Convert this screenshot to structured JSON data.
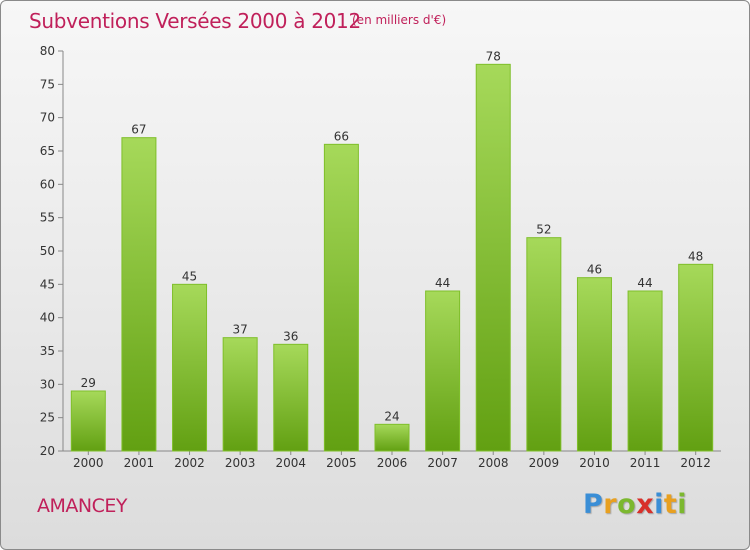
{
  "header": {
    "title": "Subventions Versées 2000 à 2012",
    "subtitle": "(en milliers d'€)"
  },
  "footer": {
    "town": "AMANCEY",
    "logo_letters": [
      "P",
      "r",
      "o",
      "x",
      "i",
      "t",
      "i"
    ],
    "logo_colors": [
      "#3a8ed6",
      "#e8a020",
      "#7cb82f",
      "#d8302a",
      "#3a8ed6",
      "#e8a020",
      "#7cb82f"
    ]
  },
  "colors": {
    "title": "#c0205a",
    "bar_top": "#a6d95a",
    "bar_bottom": "#62a012",
    "bar_stroke": "#7fbf2a",
    "grid": "#d5d5d5"
  },
  "chart_data": {
    "type": "bar",
    "title": "Subventions Versées 2000 à 2012",
    "subtitle": "(en milliers d'€)",
    "categories": [
      "2000",
      "2001",
      "2002",
      "2003",
      "2004",
      "2005",
      "2006",
      "2007",
      "2008",
      "2009",
      "2010",
      "2011",
      "2012"
    ],
    "values": [
      29,
      67,
      45,
      37,
      36,
      66,
      24,
      44,
      78,
      52,
      46,
      44,
      48
    ],
    "ylim": [
      20,
      80
    ],
    "yticks": [
      20,
      25,
      30,
      35,
      40,
      45,
      50,
      55,
      60,
      65,
      70,
      75,
      80
    ],
    "grid": false,
    "data_labels": true
  }
}
